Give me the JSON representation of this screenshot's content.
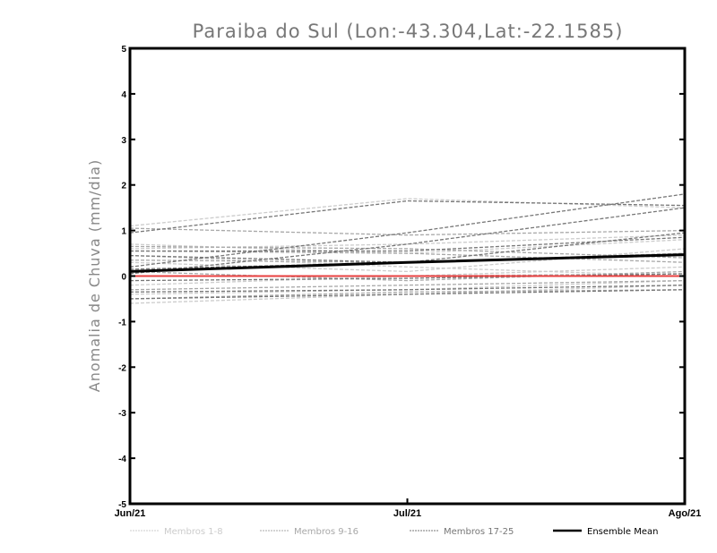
{
  "chart_data": {
    "type": "line",
    "title": "Paraiba do Sul (Lon:-43.304,Lat:-22.1585)",
    "xlabel": "",
    "ylabel": "Anomalia de Chuva (mm/dia)",
    "categories": [
      "Jun/21",
      "Jul/21",
      "Ago/21"
    ],
    "ylim": [
      -5,
      5
    ],
    "yticks": [
      "-5",
      "-4",
      "-3",
      "-2",
      "-1",
      "0",
      "1",
      "2",
      "3",
      "4",
      "5"
    ],
    "grid": false,
    "legend_position": "bottom",
    "groups": [
      {
        "name": "Membros 1-8",
        "color": "#cccccc",
        "style": "dashed",
        "series": [
          [
            1.1,
            1.7,
            1.5
          ],
          [
            0.7,
            0.5,
            0.8
          ],
          [
            0.6,
            0.7,
            0.9
          ],
          [
            0.3,
            0.1,
            0.6
          ],
          [
            -0.2,
            0.0,
            0.2
          ],
          [
            -0.4,
            -0.3,
            -0.1
          ],
          [
            -0.6,
            -0.4,
            -0.2
          ],
          [
            0.45,
            0.2,
            0.0
          ]
        ]
      },
      {
        "name": "Membros 9-16",
        "color": "#a8a8a8",
        "style": "dashed",
        "series": [
          [
            1.05,
            0.9,
            1.0
          ],
          [
            0.55,
            0.5,
            0.3
          ],
          [
            0.35,
            0.3,
            0.5
          ],
          [
            0.1,
            -0.1,
            0.1
          ],
          [
            -0.3,
            -0.2,
            -0.1
          ],
          [
            -0.5,
            -0.35,
            -0.3
          ],
          [
            0.0,
            0.0,
            0.05
          ],
          [
            0.65,
            0.6,
            0.4
          ]
        ]
      },
      {
        "name": "Membros 17-25",
        "color": "#777777",
        "style": "dashed",
        "series": [
          [
            0.95,
            1.65,
            1.55
          ],
          [
            0.2,
            0.95,
            1.8
          ],
          [
            0.05,
            0.7,
            1.5
          ],
          [
            0.55,
            0.55,
            0.85
          ],
          [
            0.15,
            0.3,
            0.45
          ],
          [
            -0.35,
            -0.3,
            -0.2
          ],
          [
            -0.5,
            -0.4,
            -0.3
          ],
          [
            -0.1,
            -0.05,
            0.05
          ],
          [
            0.45,
            0.3,
            0.95
          ]
        ]
      }
    ],
    "ensemble_mean": {
      "name": "Ensemble Mean",
      "color": "#000000",
      "values": [
        0.1,
        0.3,
        0.47
      ]
    },
    "zero_line": {
      "color": "#e84040",
      "value": 0
    }
  }
}
